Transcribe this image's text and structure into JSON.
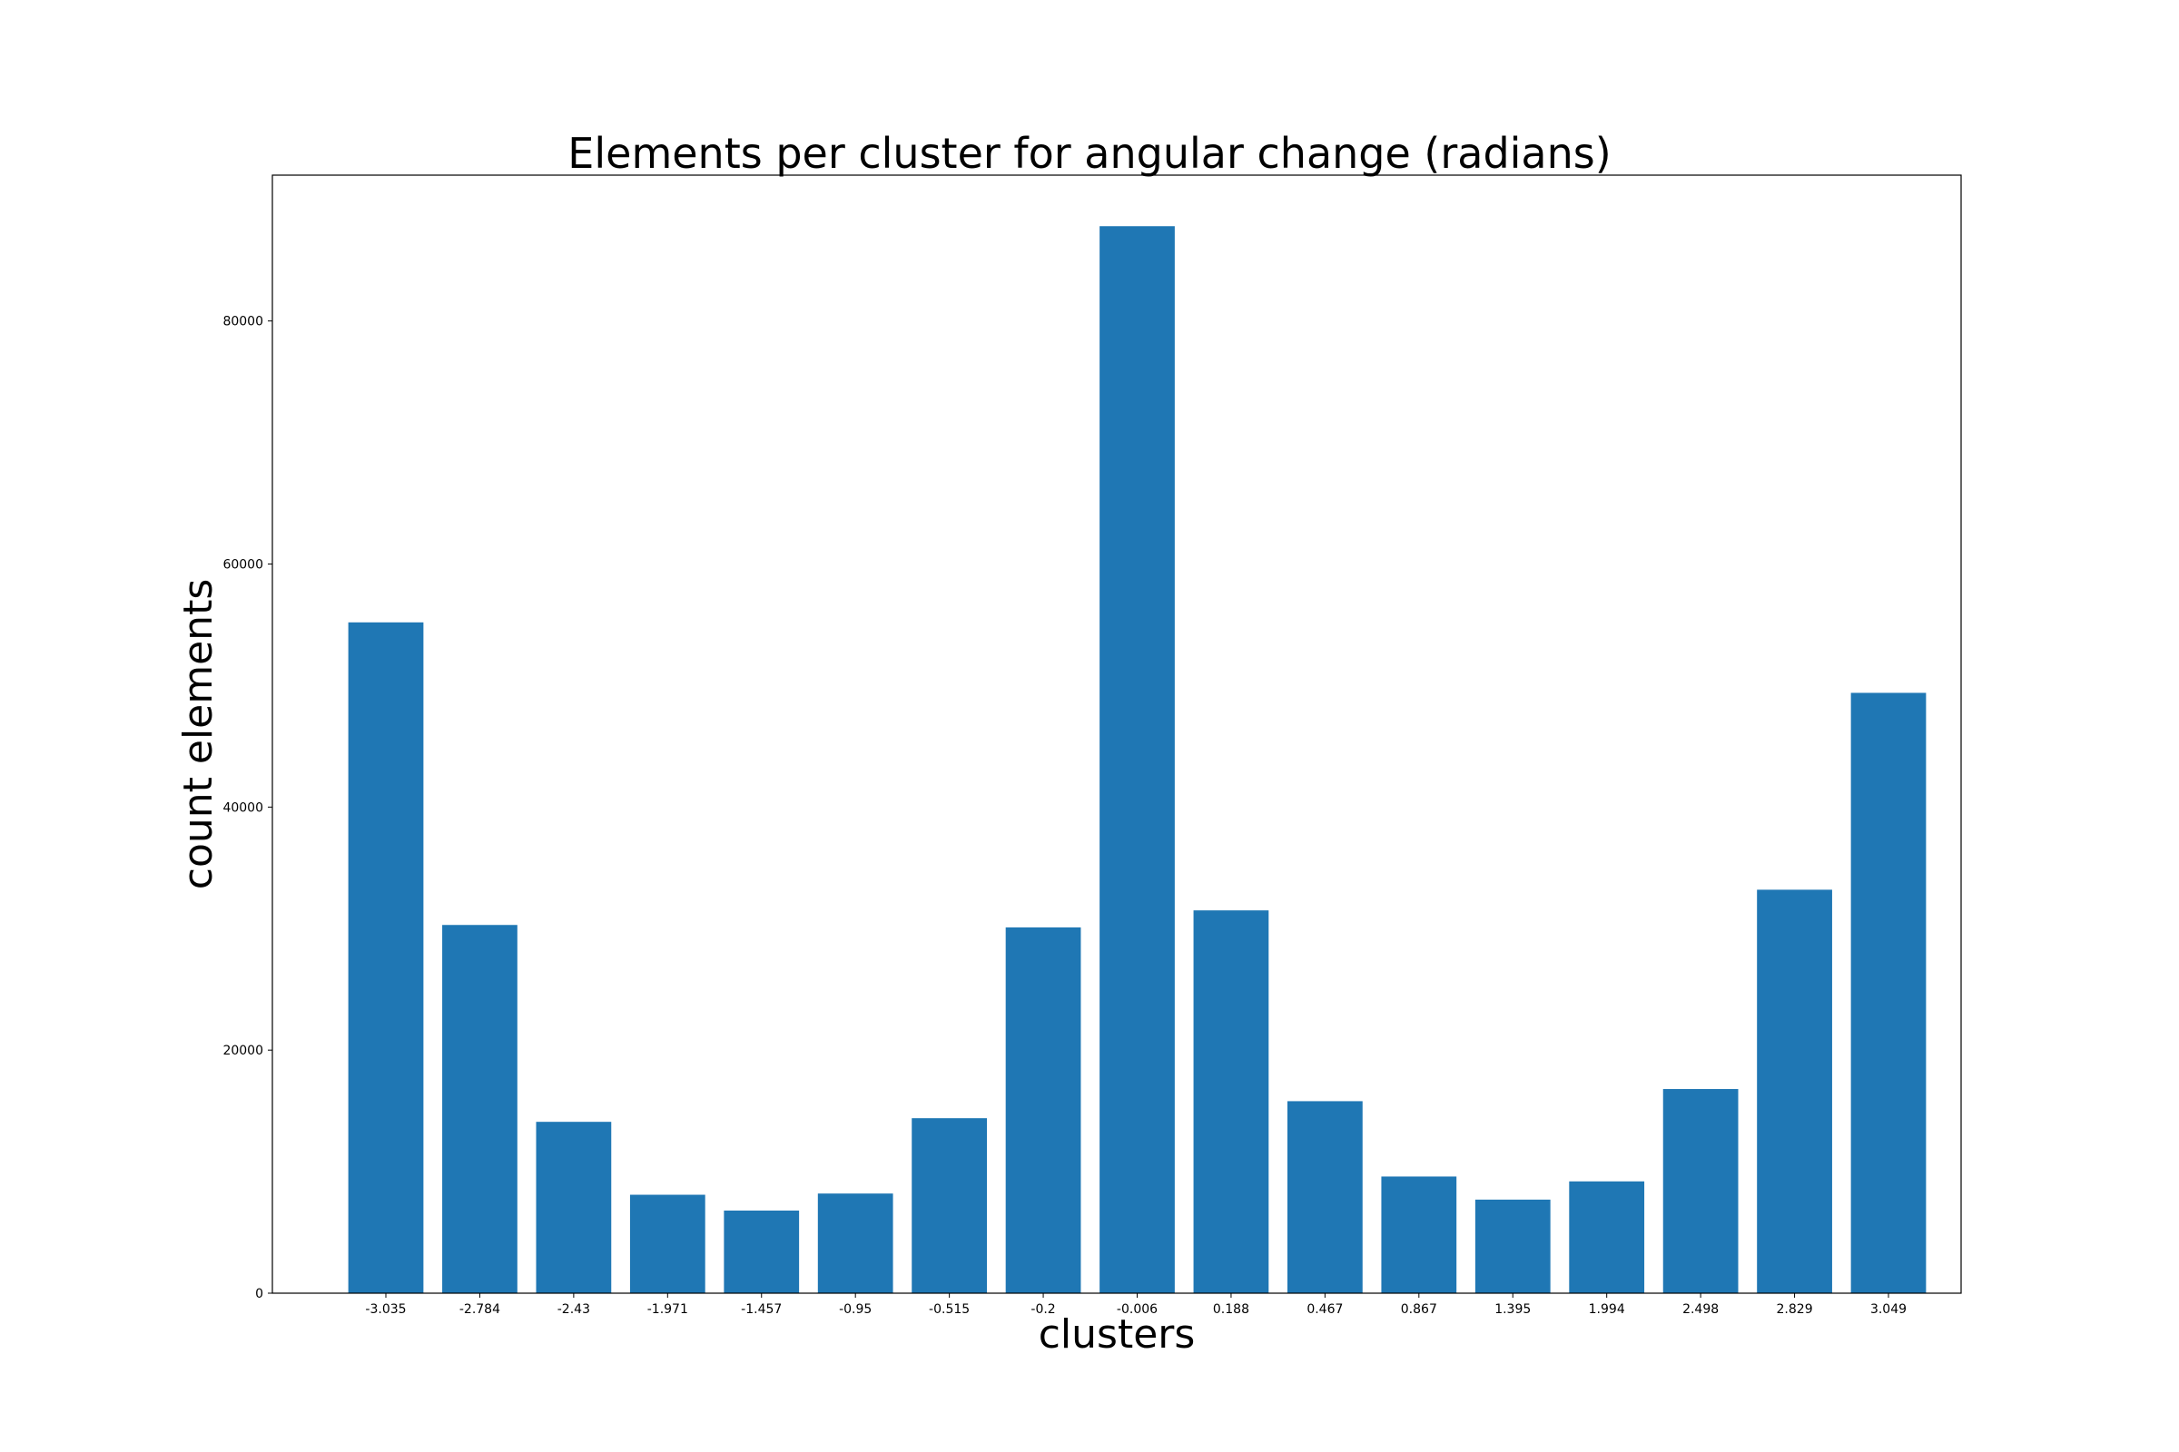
{
  "chart_data": {
    "type": "bar",
    "title": "Elements per cluster for angular change (radians)",
    "xlabel": "clusters",
    "ylabel": "count elements",
    "categories": [
      "-3.035",
      "-2.784",
      "-2.43",
      "-1.971",
      "-1.457",
      "-0.95",
      "-0.515",
      "-0.2",
      "-0.006",
      "0.188",
      "0.467",
      "0.867",
      "1.395",
      "1.994",
      "2.498",
      "2.829",
      "3.049"
    ],
    "values": [
      55200,
      30300,
      14100,
      8100,
      6800,
      8200,
      14400,
      30100,
      87800,
      31500,
      15800,
      9600,
      7700,
      9200,
      16800,
      33200,
      49400
    ],
    "yticks": [
      0,
      20000,
      40000,
      60000,
      80000
    ],
    "ylim": [
      0,
      92000
    ],
    "bar_color": "#1f77b4",
    "grid": false,
    "legend": "none"
  }
}
